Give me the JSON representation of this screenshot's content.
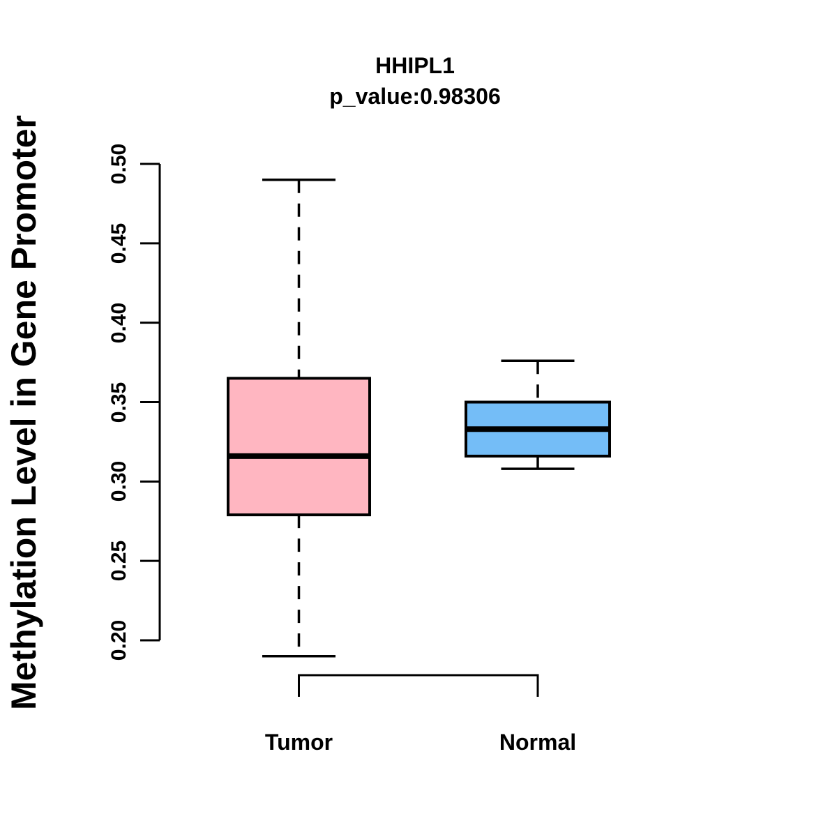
{
  "chart_data": {
    "type": "boxplot",
    "title": "HHIPL1",
    "subtitle": "p_value:0.98306",
    "ylabel": "Methylation Level in Gene Promoter",
    "xlabel": "",
    "categories": [
      "Tumor",
      "Normal"
    ],
    "ylim": [
      0.2,
      0.5
    ],
    "y_ticks": [
      0.2,
      0.25,
      0.3,
      0.35,
      0.4,
      0.45,
      0.5
    ],
    "grid": false,
    "legend_position": null,
    "background_color": "#FFFFFF",
    "stroke_color": "#000000",
    "series": [
      {
        "name": "Tumor",
        "fill_color": "#FFB6C1",
        "whisker_low": 0.19,
        "q1": 0.279,
        "median": 0.316,
        "q3": 0.365,
        "whisker_high": 0.49
      },
      {
        "name": "Normal",
        "fill_color": "#74BDF7",
        "whisker_low": 0.308,
        "q1": 0.316,
        "median": 0.333,
        "q3": 0.35,
        "whisker_high": 0.376
      }
    ]
  }
}
